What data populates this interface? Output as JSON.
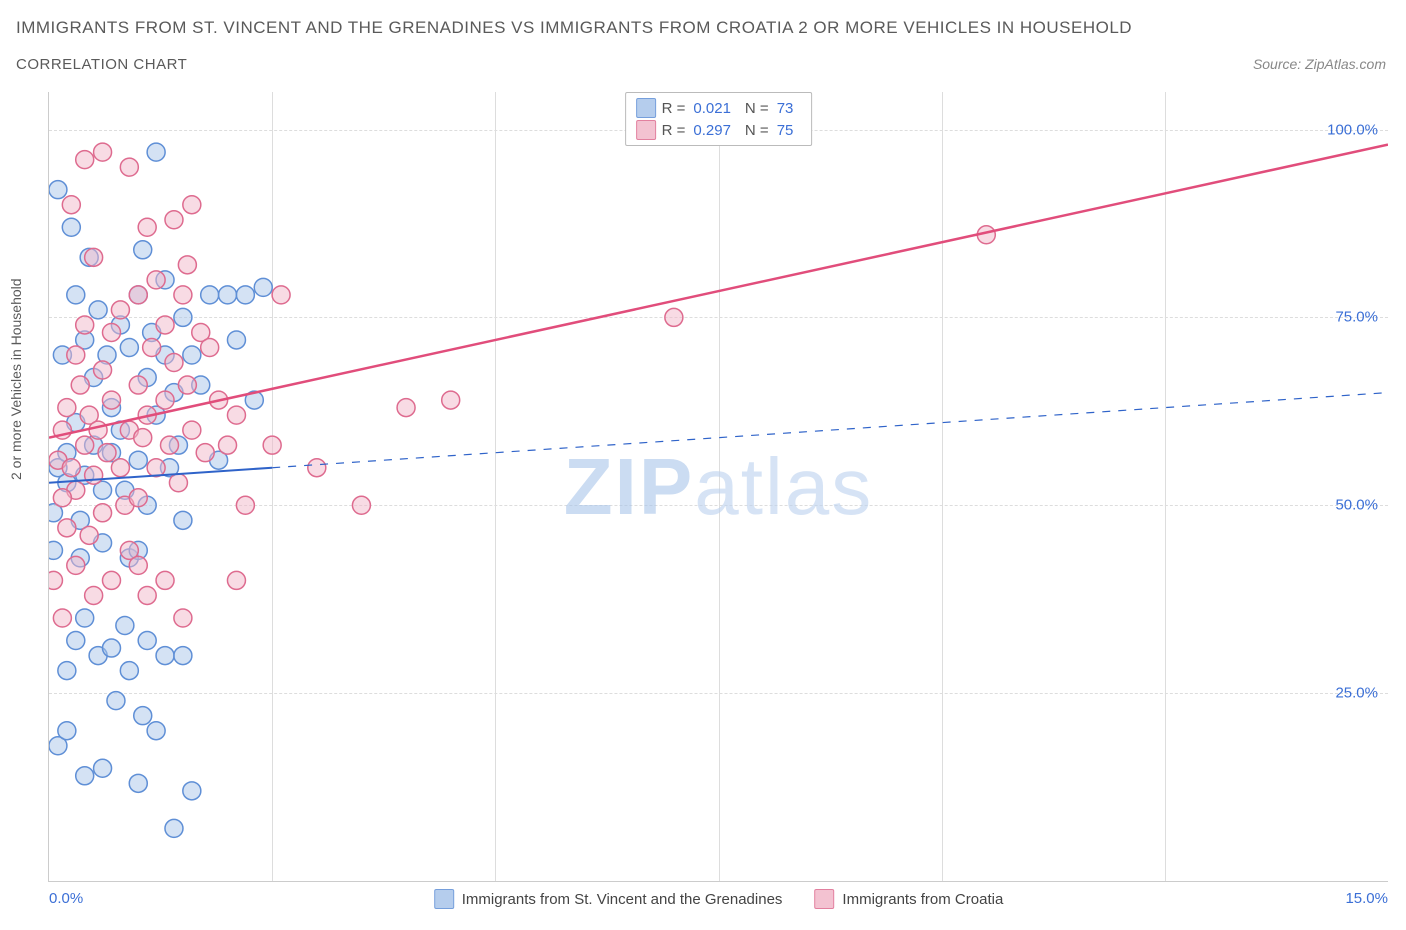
{
  "title_main": "IMMIGRANTS FROM ST. VINCENT AND THE GRENADINES VS IMMIGRANTS FROM CROATIA 2 OR MORE VEHICLES IN HOUSEHOLD",
  "title_sub": "CORRELATION CHART",
  "source_label": "Source: ZipAtlas.com",
  "y_axis_label": "2 or more Vehicles in Household",
  "watermark_bold": "ZIP",
  "watermark_light": "atlas",
  "chart": {
    "type": "scatter",
    "xlim": [
      0,
      15
    ],
    "ylim": [
      0,
      105
    ],
    "x_ticks": [
      0,
      15
    ],
    "x_tick_labels": [
      "0.0%",
      "15.0%"
    ],
    "y_ticks": [
      25,
      50,
      75,
      100
    ],
    "y_tick_labels": [
      "25.0%",
      "50.0%",
      "75.0%",
      "100.0%"
    ],
    "v_grid_positions": [
      2.5,
      5.0,
      7.5,
      10.0,
      12.5
    ],
    "background_color": "#ffffff",
    "grid_color": "#dddddd",
    "marker_radius": 9,
    "marker_stroke_width": 1.5,
    "series": [
      {
        "name": "Immigrants from St. Vincent and the Grenadines",
        "fill_color": "#a9c5ea",
        "stroke_color": "#5f8fd6",
        "fill_opacity": 0.5,
        "R": "0.021",
        "N": "73",
        "regression": {
          "x1": 0,
          "y1": 53,
          "x2": 15,
          "y2": 65,
          "solid_until_x": 2.5,
          "color": "#2f63c9",
          "width": 2
        },
        "points": [
          [
            0.05,
            49
          ],
          [
            0.1,
            55
          ],
          [
            0.1,
            92
          ],
          [
            0.15,
            70
          ],
          [
            0.2,
            57
          ],
          [
            0.2,
            53
          ],
          [
            0.25,
            87
          ],
          [
            0.3,
            78
          ],
          [
            0.3,
            61
          ],
          [
            0.35,
            48
          ],
          [
            0.4,
            54
          ],
          [
            0.4,
            72
          ],
          [
            0.45,
            83
          ],
          [
            0.5,
            58
          ],
          [
            0.5,
            67
          ],
          [
            0.55,
            76
          ],
          [
            0.6,
            52
          ],
          [
            0.6,
            45
          ],
          [
            0.65,
            70
          ],
          [
            0.7,
            63
          ],
          [
            0.7,
            57
          ],
          [
            0.8,
            74
          ],
          [
            0.8,
            60
          ],
          [
            0.85,
            52
          ],
          [
            0.9,
            43
          ],
          [
            0.9,
            71
          ],
          [
            1.0,
            78
          ],
          [
            1.0,
            56
          ],
          [
            1.05,
            84
          ],
          [
            1.1,
            67
          ],
          [
            1.1,
            50
          ],
          [
            1.15,
            73
          ],
          [
            1.2,
            62
          ],
          [
            1.2,
            97
          ],
          [
            1.3,
            70
          ],
          [
            1.3,
            80
          ],
          [
            1.35,
            55
          ],
          [
            1.4,
            65
          ],
          [
            1.45,
            58
          ],
          [
            1.5,
            48
          ],
          [
            1.5,
            75
          ],
          [
            1.6,
            70
          ],
          [
            1.7,
            66
          ],
          [
            1.8,
            78
          ],
          [
            1.9,
            56
          ],
          [
            2.0,
            78
          ],
          [
            2.1,
            72
          ],
          [
            2.2,
            78
          ],
          [
            2.3,
            64
          ],
          [
            2.4,
            79
          ],
          [
            0.1,
            18
          ],
          [
            0.2,
            28
          ],
          [
            0.3,
            32
          ],
          [
            0.2,
            20
          ],
          [
            0.55,
            30
          ],
          [
            0.4,
            35
          ],
          [
            0.7,
            31
          ],
          [
            0.75,
            24
          ],
          [
            0.6,
            15
          ],
          [
            0.85,
            34
          ],
          [
            0.9,
            28
          ],
          [
            0.4,
            14
          ],
          [
            1.0,
            13
          ],
          [
            1.05,
            22
          ],
          [
            1.1,
            32
          ],
          [
            1.2,
            20
          ],
          [
            1.3,
            30
          ],
          [
            1.4,
            7
          ],
          [
            1.5,
            30
          ],
          [
            1.6,
            12
          ],
          [
            0.05,
            44
          ],
          [
            0.35,
            43
          ],
          [
            1.0,
            44
          ]
        ]
      },
      {
        "name": "Immigrants from Croatia",
        "fill_color": "#f2b8ca",
        "stroke_color": "#de6b8f",
        "fill_opacity": 0.5,
        "R": "0.297",
        "N": "75",
        "regression": {
          "x1": 0,
          "y1": 59,
          "x2": 15,
          "y2": 98,
          "solid_until_x": 15,
          "color": "#e14d7b",
          "width": 2.5
        },
        "points": [
          [
            0.1,
            56
          ],
          [
            0.15,
            60
          ],
          [
            0.2,
            47
          ],
          [
            0.2,
            63
          ],
          [
            0.25,
            55
          ],
          [
            0.3,
            70
          ],
          [
            0.3,
            52
          ],
          [
            0.35,
            66
          ],
          [
            0.4,
            58
          ],
          [
            0.4,
            74
          ],
          [
            0.45,
            62
          ],
          [
            0.5,
            54
          ],
          [
            0.5,
            83
          ],
          [
            0.55,
            60
          ],
          [
            0.6,
            68
          ],
          [
            0.6,
            49
          ],
          [
            0.65,
            57
          ],
          [
            0.7,
            73
          ],
          [
            0.7,
            64
          ],
          [
            0.8,
            55
          ],
          [
            0.8,
            76
          ],
          [
            0.85,
            50
          ],
          [
            0.9,
            60
          ],
          [
            0.9,
            95
          ],
          [
            1.0,
            66
          ],
          [
            1.0,
            78
          ],
          [
            1.05,
            59
          ],
          [
            1.1,
            62
          ],
          [
            1.1,
            87
          ],
          [
            1.15,
            71
          ],
          [
            1.2,
            55
          ],
          [
            1.2,
            80
          ],
          [
            1.3,
            64
          ],
          [
            1.3,
            74
          ],
          [
            1.35,
            58
          ],
          [
            1.4,
            69
          ],
          [
            1.45,
            53
          ],
          [
            1.5,
            78
          ],
          [
            1.55,
            66
          ],
          [
            1.6,
            90
          ],
          [
            1.6,
            60
          ],
          [
            1.7,
            73
          ],
          [
            1.75,
            57
          ],
          [
            1.8,
            71
          ],
          [
            1.9,
            64
          ],
          [
            2.0,
            58
          ],
          [
            2.1,
            62
          ],
          [
            2.1,
            40
          ],
          [
            2.2,
            50
          ],
          [
            2.5,
            58
          ],
          [
            2.6,
            78
          ],
          [
            3.0,
            55
          ],
          [
            3.5,
            50
          ],
          [
            4.0,
            63
          ],
          [
            4.5,
            64
          ],
          [
            7.0,
            75
          ],
          [
            10.5,
            86
          ],
          [
            0.05,
            40
          ],
          [
            0.15,
            35
          ],
          [
            0.3,
            42
          ],
          [
            0.5,
            38
          ],
          [
            0.7,
            40
          ],
          [
            0.9,
            44
          ],
          [
            1.0,
            42
          ],
          [
            1.1,
            38
          ],
          [
            1.3,
            40
          ],
          [
            1.5,
            35
          ],
          [
            0.4,
            96
          ],
          [
            0.6,
            97
          ],
          [
            0.25,
            90
          ],
          [
            1.4,
            88
          ],
          [
            1.55,
            82
          ],
          [
            1.0,
            51
          ],
          [
            0.45,
            46
          ],
          [
            0.15,
            51
          ]
        ]
      }
    ]
  },
  "legend": {
    "stat_R_label": "R =",
    "stat_N_label": "N ="
  },
  "colors": {
    "text_gray": "#5a5a5a",
    "tick_blue": "#3b6fd6",
    "source_gray": "#888888"
  }
}
